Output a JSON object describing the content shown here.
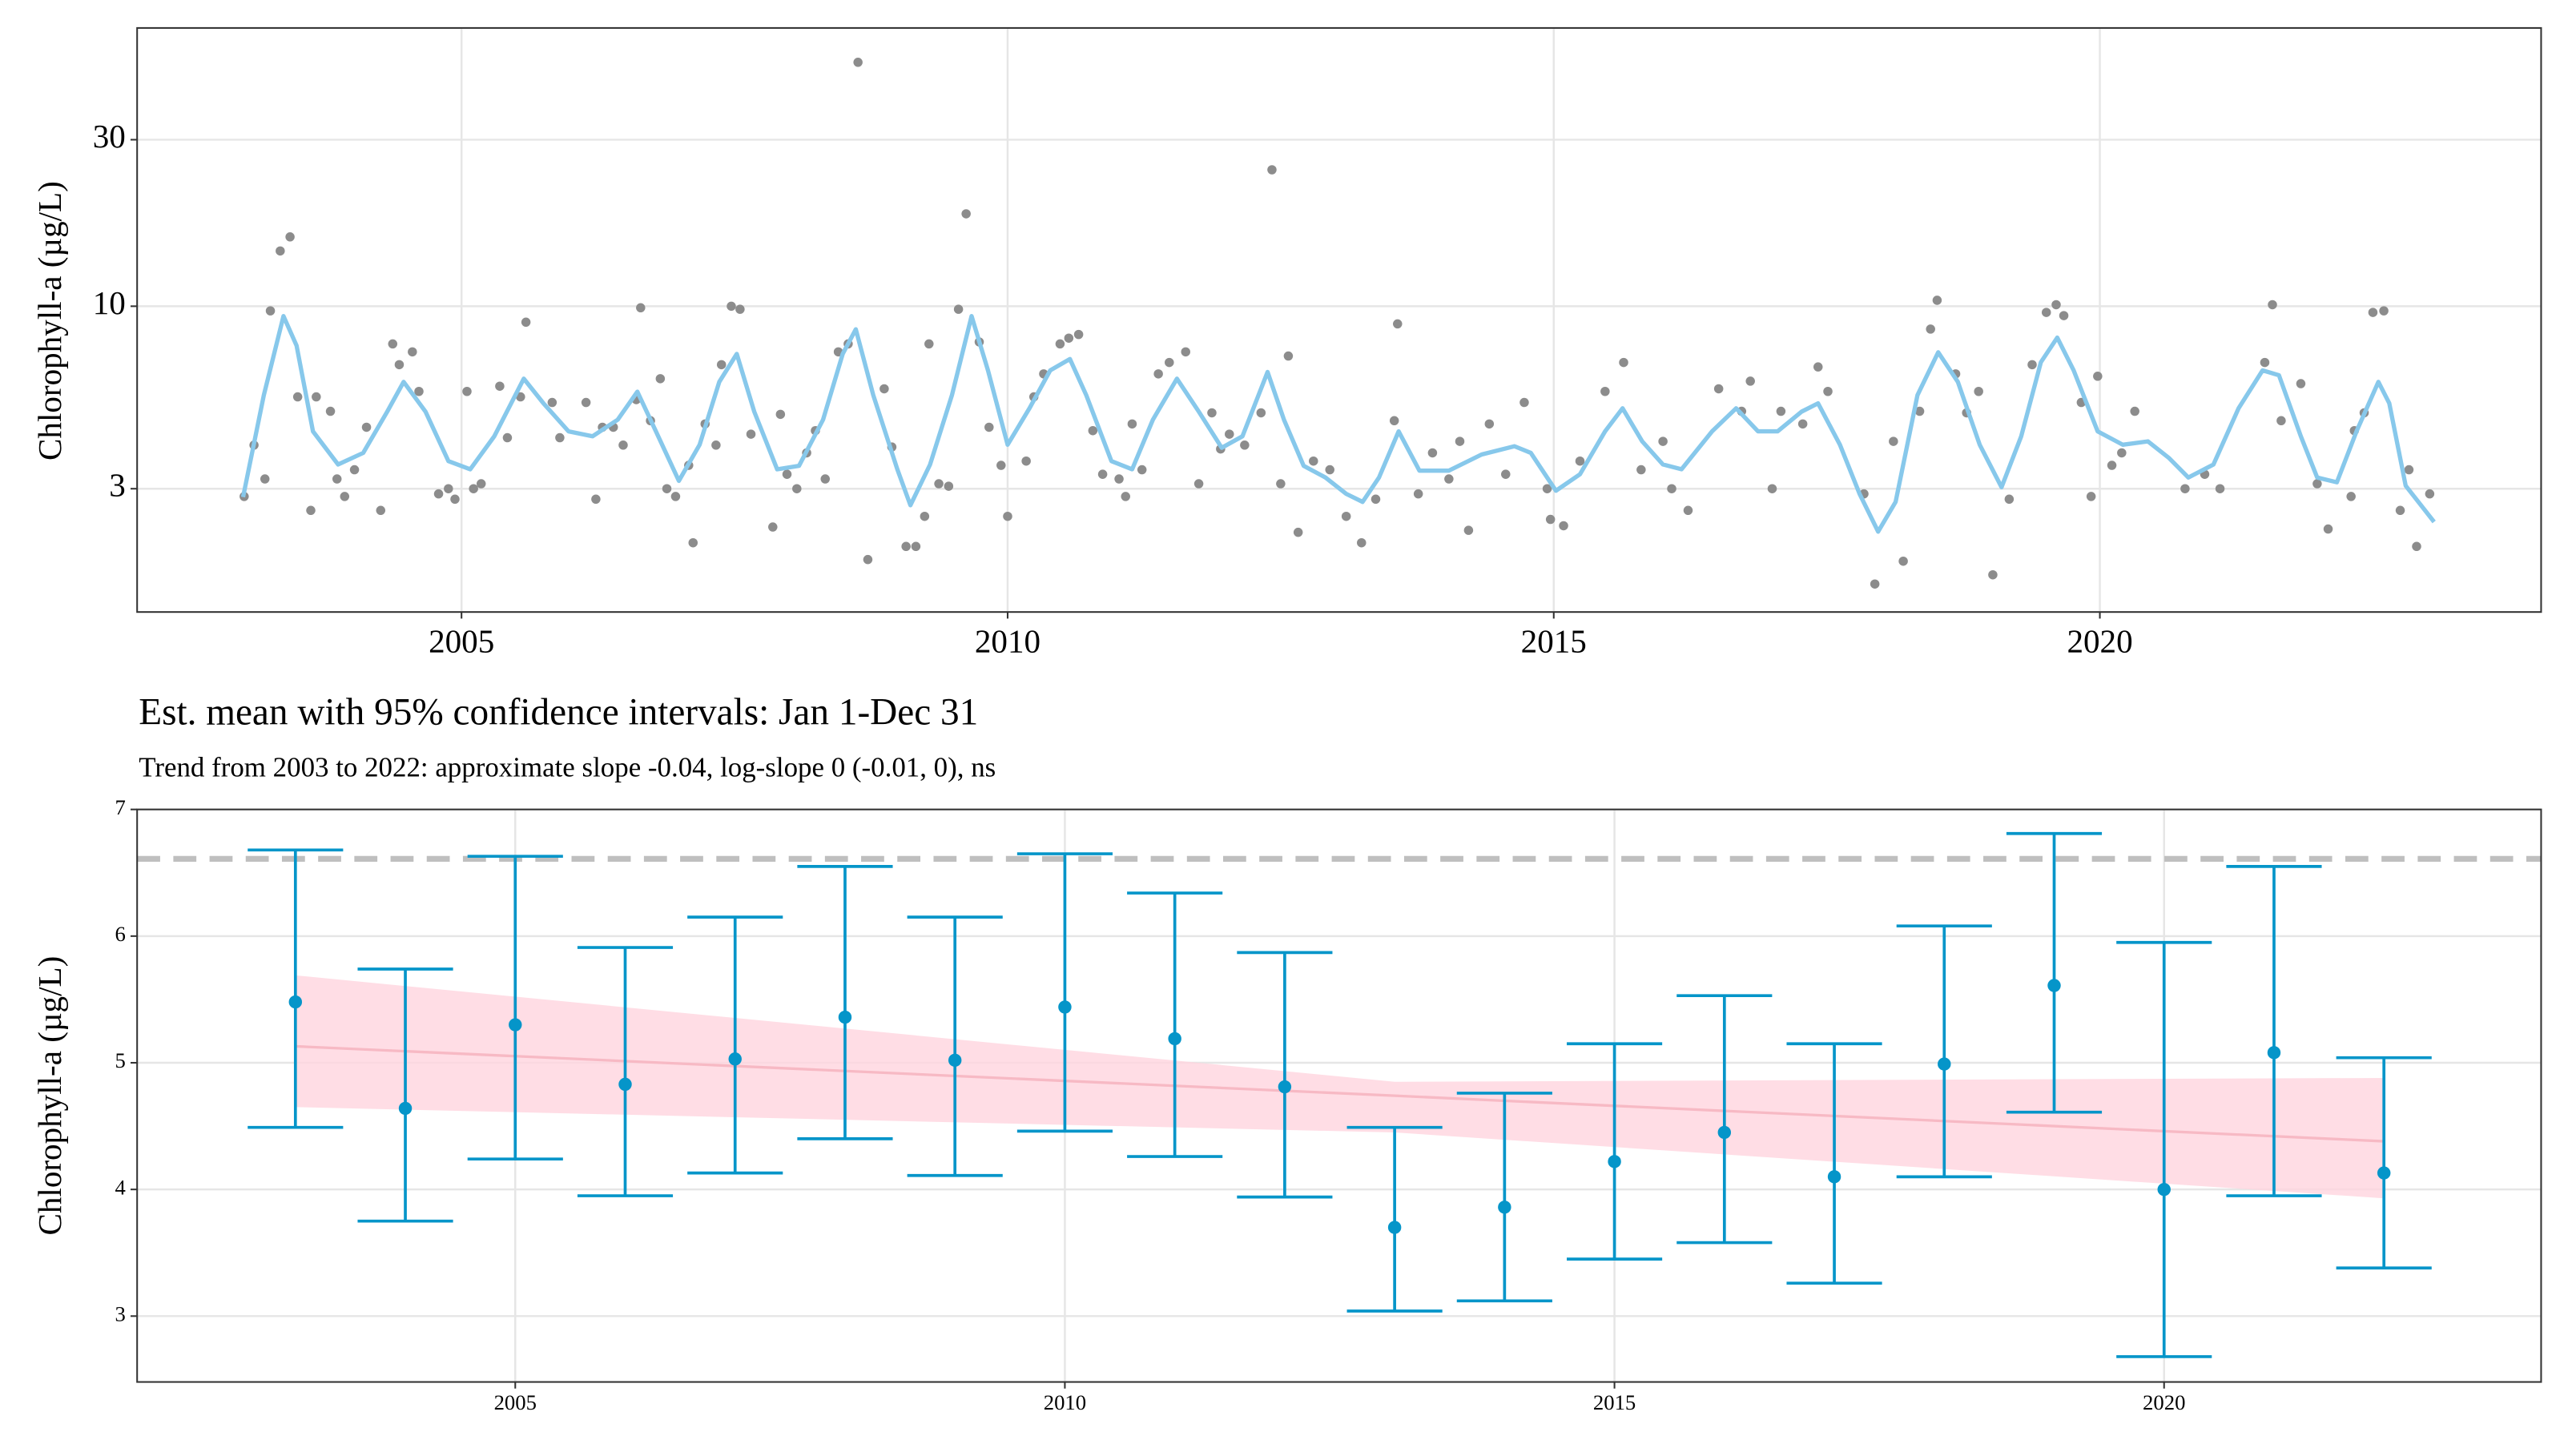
{
  "chart_data": [
    {
      "type": "scatter",
      "ylabel": "Chlorophyll-a (µg/L)",
      "log_y": true,
      "grid": true,
      "xlim": [
        2002.03,
        2024.04
      ],
      "ylim": [
        1.33,
        62.7
      ],
      "xticks": [
        2005,
        2010,
        2015,
        2020
      ],
      "yticks": [
        3,
        10,
        30
      ],
      "points": {
        "color": "#8c8c8c",
        "x": [
          2003.01,
          2003.1,
          2003.2,
          2003.25,
          2003.34,
          2003.43,
          2003.5,
          2003.62,
          2003.67,
          2003.8,
          2003.86,
          2003.93,
          2004.02,
          2004.13,
          2004.26,
          2004.37,
          2004.43,
          2004.55,
          2004.61,
          2004.79,
          2004.88,
          2004.94,
          2005.05,
          2005.11,
          2005.18,
          2005.35,
          2005.42,
          2005.54,
          2005.59,
          2005.83,
          2005.9,
          2006.14,
          2006.23,
          2006.29,
          2006.39,
          2006.48,
          2006.6,
          2006.64,
          2006.73,
          2006.82,
          2006.88,
          2006.96,
          2007.08,
          2007.12,
          2007.23,
          2007.33,
          2007.38,
          2007.47,
          2007.55,
          2007.65,
          2007.85,
          2007.92,
          2007.98,
          2008.07,
          2008.16,
          2008.24,
          2008.33,
          2008.45,
          2008.54,
          2008.63,
          2008.72,
          2008.87,
          2008.94,
          2009.07,
          2009.16,
          2009.24,
          2009.28,
          2009.37,
          2009.46,
          2009.55,
          2009.62,
          2009.74,
          2009.83,
          2009.94,
          2010.0,
          2010.17,
          2010.24,
          2010.33,
          2010.48,
          2010.56,
          2010.65,
          2010.78,
          2010.87,
          2011.02,
          2011.08,
          2011.14,
          2011.23,
          2011.38,
          2011.48,
          2011.63,
          2011.75,
          2011.87,
          2011.95,
          2012.03,
          2012.17,
          2012.32,
          2012.42,
          2012.5,
          2012.57,
          2012.66,
          2012.8,
          2012.95,
          2013.1,
          2013.24,
          2013.37,
          2013.54,
          2013.57,
          2013.76,
          2013.89,
          2014.04,
          2014.14,
          2014.22,
          2014.41,
          2014.56,
          2014.73,
          2014.94,
          2014.97,
          2015.09,
          2015.24,
          2015.47,
          2015.64,
          2015.8,
          2016.0,
          2016.08,
          2016.23,
          2016.51,
          2016.72,
          2016.8,
          2017.0,
          2017.08,
          2017.28,
          2017.42,
          2017.51,
          2017.84,
          2017.94,
          2018.11,
          2018.2,
          2018.35,
          2018.45,
          2018.51,
          2018.68,
          2018.78,
          2018.89,
          2019.02,
          2019.17,
          2019.38,
          2019.51,
          2019.6,
          2019.67,
          2019.83,
          2019.92,
          2019.98,
          2020.11,
          2020.2,
          2020.32,
          2020.78,
          2020.96,
          2021.1,
          2021.51,
          2021.58,
          2021.66,
          2021.84,
          2021.99,
          2022.09,
          2022.3,
          2022.33,
          2022.42,
          2022.5,
          2022.6,
          2022.75,
          2022.83,
          2022.9,
          2023.02
        ],
        "values": [
          2.85,
          4.0,
          3.2,
          9.7,
          14.4,
          15.8,
          5.5,
          2.6,
          5.5,
          5.0,
          3.2,
          2.85,
          3.4,
          4.5,
          2.6,
          7.8,
          6.8,
          7.4,
          5.7,
          2.9,
          3.0,
          2.8,
          5.7,
          3.0,
          3.1,
          5.9,
          4.2,
          5.5,
          9.0,
          5.3,
          4.2,
          5.3,
          2.8,
          4.5,
          4.5,
          4.0,
          5.4,
          9.9,
          4.7,
          6.2,
          3.0,
          2.85,
          3.5,
          2.1,
          4.6,
          4.0,
          6.8,
          10,
          9.8,
          4.3,
          2.33,
          4.9,
          3.3,
          3.0,
          3.8,
          4.4,
          3.2,
          7.4,
          7.8,
          50,
          1.88,
          5.8,
          3.95,
          2.05,
          2.05,
          2.5,
          7.8,
          3.1,
          3.05,
          9.8,
          18.4,
          7.9,
          4.5,
          3.5,
          2.5,
          3.6,
          5.5,
          6.4,
          7.8,
          8.1,
          8.3,
          4.4,
          3.3,
          3.2,
          2.85,
          4.6,
          3.4,
          6.4,
          6.9,
          7.4,
          3.1,
          4.95,
          3.9,
          4.3,
          4.0,
          4.95,
          24.6,
          3.1,
          7.2,
          2.25,
          3.6,
          3.4,
          2.5,
          2.1,
          2.8,
          4.7,
          8.9,
          2.9,
          3.8,
          3.2,
          4.1,
          2.28,
          4.6,
          3.3,
          5.3,
          3.0,
          2.45,
          2.35,
          3.6,
          5.7,
          6.9,
          3.4,
          4.1,
          3.0,
          2.6,
          5.8,
          5.0,
          6.1,
          3.0,
          5.0,
          4.6,
          6.7,
          5.7,
          2.9,
          1.6,
          4.1,
          1.86,
          5.0,
          8.6,
          10.4,
          6.4,
          4.95,
          5.7,
          1.7,
          2.8,
          6.8,
          9.6,
          10.1,
          9.4,
          5.3,
          2.85,
          6.3,
          3.5,
          3.8,
          5.0,
          3.0,
          3.3,
          3.0,
          6.9,
          10.1,
          4.7,
          6.0,
          3.1,
          2.3,
          2.85,
          4.4,
          4.95,
          9.6,
          9.7,
          2.6,
          3.4,
          2.05,
          2.9
        ]
      },
      "smooth": {
        "color": "#87c8eb",
        "x": [
          2003.0,
          2003.19,
          2003.37,
          2003.49,
          2003.64,
          2003.87,
          2004.1,
          2004.32,
          2004.47,
          2004.67,
          2004.88,
          2005.08,
          2005.3,
          2005.57,
          2005.75,
          2005.98,
          2006.2,
          2006.43,
          2006.61,
          2006.78,
          2006.99,
          2007.18,
          2007.36,
          2007.52,
          2007.68,
          2007.89,
          2008.09,
          2008.31,
          2008.49,
          2008.61,
          2008.77,
          2008.99,
          2009.11,
          2009.29,
          2009.49,
          2009.67,
          2009.82,
          2010.0,
          2010.2,
          2010.39,
          2010.57,
          2010.72,
          2010.95,
          2011.14,
          2011.33,
          2011.55,
          2011.75,
          2011.96,
          2012.15,
          2012.38,
          2012.53,
          2012.71,
          2012.91,
          2013.1,
          2013.25,
          2013.4,
          2013.58,
          2013.77,
          2014.04,
          2014.34,
          2014.64,
          2014.79,
          2015.02,
          2015.24,
          2015.47,
          2015.63,
          2015.81,
          2016.0,
          2016.17,
          2016.45,
          2016.67,
          2016.87,
          2017.05,
          2017.27,
          2017.42,
          2017.62,
          2017.8,
          2017.97,
          2018.13,
          2018.33,
          2018.52,
          2018.7,
          2018.9,
          2019.1,
          2019.28,
          2019.46,
          2019.61,
          2019.76,
          2019.98,
          2020.21,
          2020.44,
          2020.63,
          2020.81,
          2021.04,
          2021.27,
          2021.49,
          2021.64,
          2021.84,
          2021.99,
          2022.17,
          2022.35,
          2022.55,
          2022.65,
          2022.8,
          2023.06
        ],
        "values": [
          2.84,
          5.56,
          9.37,
          7.71,
          4.38,
          3.52,
          3.8,
          4.99,
          6.07,
          4.99,
          3.6,
          3.41,
          4.24,
          6.2,
          5.27,
          4.38,
          4.24,
          4.73,
          5.69,
          4.38,
          3.16,
          4.01,
          6.07,
          7.3,
          4.99,
          3.41,
          3.49,
          4.73,
          7.3,
          8.59,
          5.56,
          3.41,
          2.69,
          3.52,
          5.56,
          9.37,
          6.55,
          4.01,
          5.1,
          6.55,
          7.06,
          5.56,
          3.6,
          3.41,
          4.73,
          6.2,
          4.99,
          3.93,
          4.24,
          6.48,
          4.73,
          3.49,
          3.23,
          2.9,
          2.75,
          3.23,
          4.38,
          3.38,
          3.38,
          3.76,
          3.97,
          3.8,
          2.96,
          3.3,
          4.38,
          5.1,
          4.1,
          3.52,
          3.41,
          4.38,
          5.1,
          4.38,
          4.38,
          4.99,
          5.27,
          4.01,
          2.9,
          2.26,
          2.75,
          5.56,
          7.38,
          6.07,
          4.01,
          3.03,
          4.24,
          6.91,
          8.13,
          6.55,
          4.38,
          4.01,
          4.1,
          3.68,
          3.23,
          3.52,
          5.1,
          6.55,
          6.34,
          4.24,
          3.23,
          3.13,
          4.38,
          6.07,
          5.27,
          3.06,
          2.41
        ]
      }
    },
    {
      "type": "errorbar",
      "title": "Est. mean with 95% confidence intervals: Jan 1-Dec 31",
      "subtitle": "Trend from 2003 to 2022: approximate slope -0.04, log-slope 0 (-0.01, 0), ns",
      "ylabel": "Chlorophyll-a (µg/L)",
      "grid": true,
      "xlim": [
        2001.56,
        2023.43
      ],
      "ylim": [
        2.48,
        7
      ],
      "xticks": [
        2005,
        2010,
        2015,
        2020
      ],
      "yticks": [
        3,
        4,
        5,
        6,
        7
      ],
      "color": "#0595c9",
      "x": [
        2003,
        2004,
        2005,
        2006,
        2007,
        2008,
        2009,
        2010,
        2011,
        2012,
        2013,
        2014,
        2015,
        2016,
        2017,
        2018,
        2019,
        2020,
        2021,
        2022
      ],
      "values": [
        5.48,
        4.64,
        5.3,
        4.83,
        5.03,
        5.36,
        5.02,
        5.44,
        5.19,
        4.81,
        3.7,
        3.86,
        4.22,
        4.45,
        4.1,
        4.99,
        5.61,
        4.0,
        5.08,
        4.13
      ],
      "lower": [
        4.49,
        3.75,
        4.24,
        3.95,
        4.13,
        4.4,
        4.11,
        4.46,
        4.26,
        3.94,
        3.04,
        3.12,
        3.45,
        3.58,
        3.26,
        4.1,
        4.61,
        2.68,
        3.95,
        3.38
      ],
      "upper": [
        6.68,
        5.74,
        6.63,
        5.91,
        6.15,
        6.55,
        6.15,
        6.65,
        6.34,
        5.87,
        4.49,
        4.76,
        5.15,
        5.53,
        5.15,
        6.08,
        6.81,
        5.95,
        6.55,
        5.04
      ],
      "trend": {
        "x": [
          2003,
          2013,
          2022
        ],
        "values": [
          5.13,
          4.74,
          4.38
        ],
        "lower": [
          4.65,
          4.45,
          3.93
        ],
        "upper": [
          5.69,
          4.85,
          4.88
        ],
        "color": "#f7b9c4",
        "fill": "#ffd5de"
      },
      "reference_line": 6.61,
      "reference_color": "#bfbfbf"
    }
  ]
}
